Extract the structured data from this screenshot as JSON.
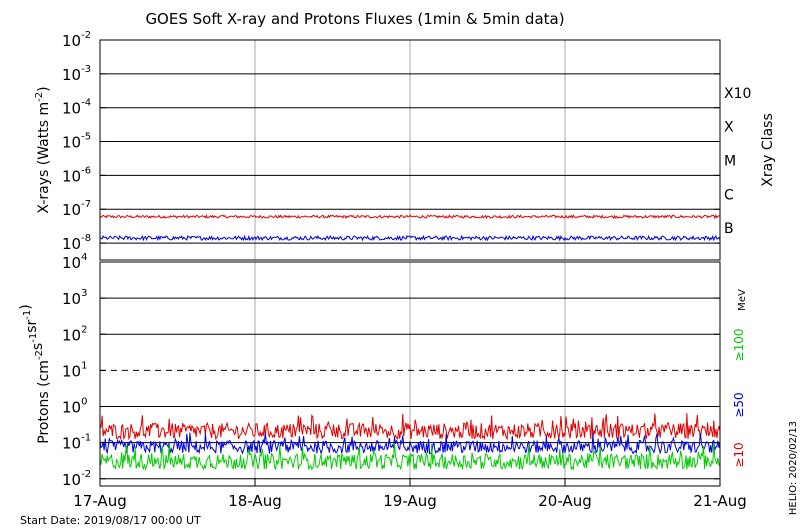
{
  "chart_data": {
    "title": "GOES Soft X-ray and Protons Fluxes   (1min & 5min data)",
    "type": "line",
    "footer": {
      "start_date": "Start Date: 2019/08/17 00:00 UT",
      "credit": "HELIO: 2020/02/13"
    },
    "x_ticks": [
      "17-Aug",
      "18-Aug",
      "19-Aug",
      "20-Aug",
      "21-Aug"
    ],
    "panels": [
      {
        "name": "xrays",
        "ylabel": "X-rays (Watts m",
        "ylabel_exp": "-2",
        "ylabel_close": ")",
        "yscale": "log",
        "ylim_exp": [
          -8.5,
          -2
        ],
        "y_ticks": [
          {
            "base": "10",
            "exp": "-2",
            "value": -2
          },
          {
            "base": "10",
            "exp": "-3",
            "value": -3
          },
          {
            "base": "10",
            "exp": "-4",
            "value": -4
          },
          {
            "base": "10",
            "exp": "-5",
            "value": -5
          },
          {
            "base": "10",
            "exp": "-6",
            "value": -6
          },
          {
            "base": "10",
            "exp": "-7",
            "value": -7
          },
          {
            "base": "10",
            "exp": "-8",
            "value": -8
          }
        ],
        "right_label": "Xray Class",
        "class_labels": [
          {
            "label": "X10",
            "value": -3
          },
          {
            "label": "X",
            "value": -4
          },
          {
            "label": "M",
            "value": -5
          },
          {
            "label": "C",
            "value": -6
          },
          {
            "label": "B",
            "value": -7
          }
        ],
        "series": [
          {
            "name": "",
            "color": "#e00000",
            "level_exp": -7.22,
            "noise": 0.04
          },
          {
            "name": "",
            "color": "#0000e0",
            "level_exp": -7.85,
            "noise": 0.06
          }
        ]
      },
      {
        "name": "protons",
        "ylabel": "Protons (cm",
        "ylabel_parts": [
          {
            "t": "Protons (cm",
            "sup": ""
          },
          {
            "t": "",
            "sup": "-2"
          },
          {
            "t": "s",
            "sup": "-1"
          },
          {
            "t": "sr",
            "sup": "-1"
          },
          {
            "t": ")",
            "sup": ""
          }
        ],
        "yscale": "log",
        "ylim_exp": [
          -2.2,
          4
        ],
        "y_ticks": [
          {
            "base": "10",
            "exp": "4",
            "value": 4
          },
          {
            "base": "10",
            "exp": "3",
            "value": 3
          },
          {
            "base": "10",
            "exp": "2",
            "value": 2
          },
          {
            "base": "10",
            "exp": "1",
            "value": 1
          },
          {
            "base": "10",
            "exp": "0",
            "value": 0
          },
          {
            "base": "10",
            "exp": "-1",
            "value": -1
          },
          {
            "base": "10",
            "exp": "-2",
            "value": -2
          }
        ],
        "threshold_exp": 1,
        "unit_label": "MeV",
        "energy_labels": [
          {
            "label": "≥100",
            "color": "#00cc00"
          },
          {
            "label": "≥50",
            "color": "#0000e0"
          },
          {
            "label": "≥10",
            "color": "#e00000"
          }
        ],
        "series": [
          {
            "name": "≥10",
            "color": "#e00000",
            "level_exp": -0.68,
            "noise": 0.22
          },
          {
            "name": "≥50",
            "color": "#0000e0",
            "level_exp": -1.12,
            "noise": 0.18
          },
          {
            "name": "≥100",
            "color": "#00cc00",
            "level_exp": -1.52,
            "noise": 0.22
          }
        ]
      }
    ]
  }
}
